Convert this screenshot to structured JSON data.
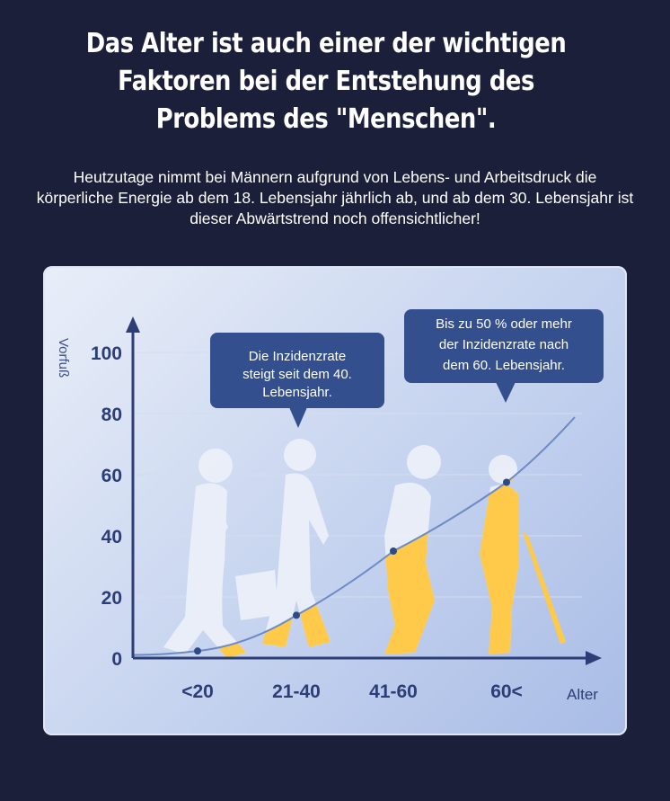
{
  "headline": {
    "line1": "Das Alter ist auch einer der wichtigen",
    "line2": "Faktoren bei der Entstehung des",
    "line3": "Problems des \"Menschen\"."
  },
  "subtext": "Heutzutage nimmt bei Männern aufgrund von Lebens- und Arbeitsdruck die körperliche Energie ab dem 18. Lebensjahr jährlich ab, und ab dem 30. Lebensjahr ist dieser Abwärtstrend noch offensichtlicher!",
  "callouts": {
    "first": [
      "Die Inzidenzrate",
      "steigt seit dem 40.",
      "Lebensjahr."
    ],
    "second": [
      "Bis zu 50 % oder mehr",
      "der Inzidenzrate nach",
      "dem 60. Lebensjahr."
    ]
  },
  "colors": {
    "background": "#1b1f3a",
    "figure_light": "#edf1f9",
    "figure_highlight": "#ffc94a",
    "axis": "#2c3e75",
    "curve": "#6d8bc4",
    "callout": "#344f8e"
  },
  "icons": [
    "walking-man-icon",
    "man-with-briefcase-icon",
    "stooped-man-icon",
    "elderly-man-with-cane-icon"
  ],
  "chart_data": {
    "type": "line",
    "ylabel": "Vorfuß",
    "xlabel": "Alter",
    "categories": [
      "<20",
      "21-40",
      "41-60",
      "60<"
    ],
    "y_ticks": [
      0,
      20,
      40,
      60,
      80,
      100
    ],
    "ylim": [
      0,
      100
    ],
    "series": [
      {
        "values": [
          2.3,
          14,
          35,
          57.5
        ]
      }
    ],
    "grid": true
  }
}
